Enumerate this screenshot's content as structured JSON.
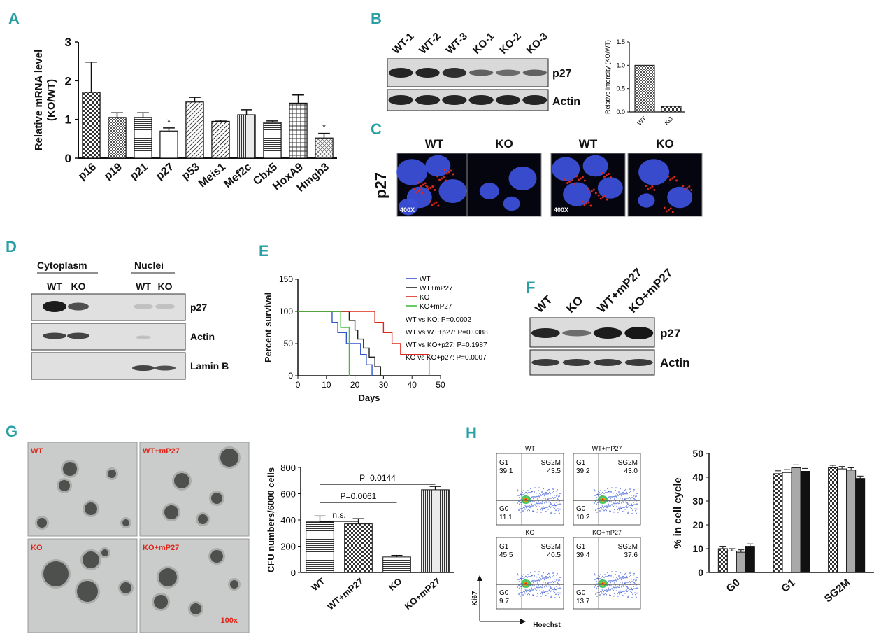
{
  "panel_letters": [
    "A",
    "B",
    "C",
    "D",
    "E",
    "F",
    "G",
    "H"
  ],
  "colors": {
    "accent": "#2aa0a4",
    "red_label": "#e0261b",
    "blue_cell": "#3b4fd8",
    "red_stain": "#d8281c"
  },
  "chart_data": [
    {
      "id": "A",
      "type": "bar",
      "ylabel": "Relative mRNA level (KO/WT)",
      "ylabel_lines": [
        "Relative mRNA level",
        "(KO/WT)"
      ],
      "ylim": [
        0,
        3
      ],
      "yticks": [
        "0",
        "1",
        "2",
        "3"
      ],
      "categories": [
        "p16",
        "p19",
        "p21",
        "p27",
        "p53",
        "Meis1",
        "Mef2c",
        "Cbx5",
        "HoxA9",
        "Hmgb3"
      ],
      "values": [
        1.7,
        1.05,
        1.05,
        0.7,
        1.45,
        0.95,
        1.12,
        0.92,
        1.42,
        0.52
      ],
      "errors": [
        0.78,
        0.12,
        0.12,
        0.08,
        0.12,
        0.03,
        0.13,
        0.04,
        0.21,
        0.12
      ],
      "significance": [
        "",
        "",
        "",
        "*",
        "",
        "",
        "",
        "",
        "",
        "*"
      ]
    },
    {
      "id": "B",
      "type": "bar",
      "ylabel": "Relative intensity (KO/WT)",
      "ylim": [
        0,
        1.5
      ],
      "yticks": [
        "0.0",
        "0.5",
        "1.0",
        "1.5"
      ],
      "categories": [
        "WT",
        "KO"
      ],
      "values": [
        1.0,
        0.12
      ]
    },
    {
      "id": "E",
      "type": "line",
      "ylabel": "Percent survival",
      "xlabel": "Days",
      "xlim": [
        0,
        50
      ],
      "ylim": [
        0,
        150
      ],
      "xticks": [
        "0",
        "10",
        "20",
        "30",
        "40",
        "50"
      ],
      "yticks": [
        "0",
        "50",
        "100",
        "150"
      ],
      "series": [
        {
          "name": "WT",
          "color": "#3355cc",
          "x": [
            0,
            10,
            12,
            14,
            17,
            20,
            22,
            24,
            26
          ],
          "y": [
            100,
            100,
            83,
            67,
            50,
            50,
            33,
            17,
            0
          ]
        },
        {
          "name": "WT+mP27",
          "color": "#222222",
          "x": [
            0,
            15,
            18,
            20,
            21,
            23,
            25,
            27,
            29
          ],
          "y": [
            100,
            100,
            86,
            71,
            57,
            43,
            29,
            14,
            0
          ]
        },
        {
          "name": "KO",
          "color": "#e0261b",
          "x": [
            0,
            25,
            27,
            30,
            33,
            36,
            46
          ],
          "y": [
            100,
            100,
            83,
            67,
            50,
            33,
            0
          ]
        },
        {
          "name": "KO+mP27",
          "color": "#3fbf3f",
          "x": [
            0,
            13,
            15,
            18
          ],
          "y": [
            100,
            100,
            75,
            0
          ]
        }
      ],
      "stats": [
        "WT vs KO: P=0.0002",
        "WT vs WT+p27: P=0.0388",
        "WT vs KO+p27: P=0.1987",
        "KO vs KO+p27: P=0.0007"
      ]
    },
    {
      "id": "G",
      "type": "bar",
      "ylabel": "CFU numbers/6000 cells",
      "ylim": [
        0,
        800
      ],
      "yticks": [
        "0",
        "200",
        "400",
        "600",
        "800"
      ],
      "categories": [
        "WT",
        "WT+mP27",
        "KO",
        "KO+mP27"
      ],
      "values": [
        385,
        370,
        118,
        630
      ],
      "errors": [
        45,
        40,
        12,
        25
      ],
      "comparisons": [
        "n.s.",
        "P=0.0061",
        "P=0.0144"
      ]
    },
    {
      "id": "H",
      "type": "bar",
      "ylabel": "% in cell cycle",
      "ylim": [
        0,
        50
      ],
      "yticks": [
        "0",
        "10",
        "20",
        "30",
        "40",
        "50"
      ],
      "categories": [
        "G0",
        "G1",
        "SG2M"
      ],
      "series": [
        {
          "values": [
            10,
            41.5,
            44
          ]
        },
        {
          "values": [
            9,
            42,
            43.5
          ]
        },
        {
          "values": [
            8.5,
            44,
            43
          ]
        },
        {
          "values": [
            11,
            42.5,
            39.5
          ]
        }
      ],
      "errors": [
        1,
        1.2,
        1
      ]
    }
  ],
  "blot_B": {
    "lanes": [
      "WT-1",
      "WT-2",
      "WT-3",
      "KO-1",
      "KO-2",
      "KO-3"
    ],
    "rows": [
      "p27",
      "Actin"
    ]
  },
  "panel_C": {
    "headers": [
      "WT",
      "KO",
      "WT",
      "KO"
    ],
    "row_label": "p27",
    "magnification": "400X"
  },
  "blot_D": {
    "groups": [
      "Cytoplasm",
      "Nuclei"
    ],
    "lanes": [
      "WT",
      "KO",
      "WT",
      "KO"
    ],
    "rows": [
      "p27",
      "Actin",
      "Lamin B"
    ]
  },
  "blot_F": {
    "lanes": [
      "WT",
      "KO",
      "WT+mP27",
      "KO+mP27"
    ],
    "rows": [
      "p27",
      "Actin"
    ]
  },
  "panel_G_images": {
    "labels": [
      "WT",
      "WT+mP27",
      "KO",
      "KO+mP27"
    ],
    "magnification": "100x"
  },
  "panel_H_flow": {
    "titles": [
      "WT",
      "WT+mP27",
      "KO",
      "KO+mP27"
    ],
    "gates": [
      {
        "g1": "39.1",
        "sg2m": "43.5",
        "g0": "11.1"
      },
      {
        "g1": "39.2",
        "sg2m": "43.0",
        "g0": "10.2"
      },
      {
        "g1": "45.5",
        "sg2m": "40.5",
        "g0": "9.7"
      },
      {
        "g1": "39.4",
        "sg2m": "37.6",
        "g0": "13.7"
      }
    ],
    "gate_labels": {
      "g1": "G1",
      "sg2m": "SG2M",
      "g0": "G0"
    },
    "yaxis": "Ki67",
    "xaxis": "Hoechst"
  }
}
